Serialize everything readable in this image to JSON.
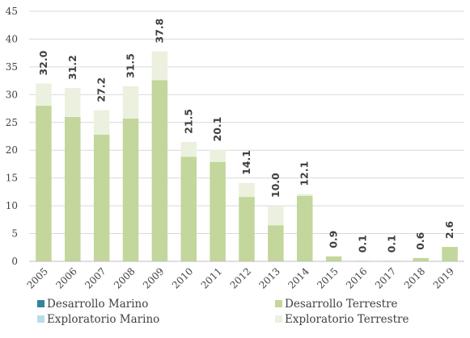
{
  "chart_data": {
    "type": "bar",
    "stacked": true,
    "categories": [
      "2005",
      "2006",
      "2007",
      "2008",
      "2009",
      "2010",
      "2011",
      "2012",
      "2013",
      "2014",
      "2015",
      "2016",
      "2017",
      "2018",
      "2019"
    ],
    "series": [
      {
        "name": "Desarrollo Marino",
        "color": "#31859c",
        "values": [
          0,
          0,
          0,
          0,
          0,
          0,
          0,
          0,
          0,
          0,
          0,
          0,
          0,
          0,
          0
        ]
      },
      {
        "name": "Desarrollo Terrestre",
        "color": "#c3d69b",
        "values": [
          28.0,
          26.0,
          22.8,
          25.7,
          32.6,
          18.8,
          17.9,
          11.6,
          6.5,
          11.8,
          0.9,
          0.1,
          0.1,
          0.6,
          2.6
        ]
      },
      {
        "name": "Exploratorio Marino",
        "color": "#b7dee8",
        "values": [
          0,
          0,
          0,
          0,
          0,
          0,
          0,
          0,
          0,
          0,
          0,
          0,
          0,
          0,
          0
        ]
      },
      {
        "name": "Exploratorio Terrestre",
        "color": "#ebf1de",
        "values": [
          4.0,
          5.2,
          4.4,
          5.8,
          5.2,
          2.7,
          2.2,
          2.5,
          3.5,
          0.3,
          0,
          0,
          0,
          0,
          0
        ]
      }
    ],
    "totals": [
      "32.0",
      "31.2",
      "27.2",
      "31.5",
      "37.8",
      "21.5",
      "20.1",
      "14.1",
      "10.0",
      "12.1",
      "0.9",
      "0.1",
      "0.1",
      "0.6",
      "2.6"
    ],
    "yticks": [
      "0",
      "5",
      "10",
      "15",
      "20",
      "25",
      "30",
      "35",
      "40",
      "45"
    ],
    "ylim": [
      0,
      45
    ],
    "grid": true,
    "legend_position": "bottom",
    "title": "",
    "xlabel": "",
    "ylabel": ""
  }
}
